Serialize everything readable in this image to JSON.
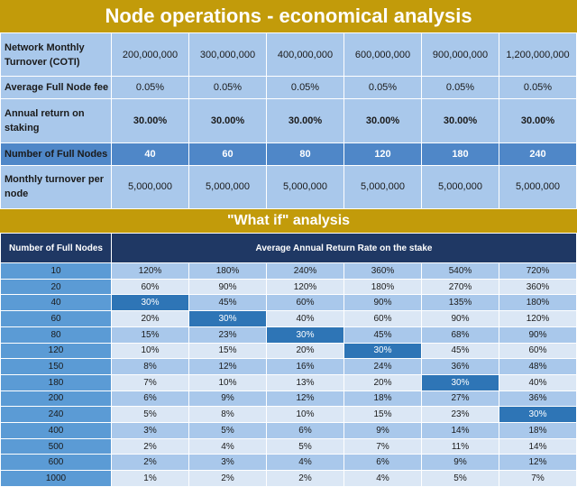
{
  "title": "Node operations - economical analysis",
  "top_table": {
    "rows": [
      {
        "label": "Network Monthly Turnover (COTI)",
        "values": [
          "200,000,000",
          "300,000,000",
          "400,000,000",
          "600,000,000",
          "900,000,000",
          "1,200,000,000"
        ]
      },
      {
        "label": "Average Full Node fee",
        "values": [
          "0.05%",
          "0.05%",
          "0.05%",
          "0.05%",
          "0.05%",
          "0.05%"
        ]
      },
      {
        "label": "Annual return on staking",
        "values": [
          "30.00%",
          "30.00%",
          "30.00%",
          "30.00%",
          "30.00%",
          "30.00%"
        ]
      },
      {
        "label": "Number of Full Nodes",
        "values": [
          "40",
          "60",
          "80",
          "120",
          "180",
          "240"
        ]
      },
      {
        "label": "Monthly turnover per node",
        "values": [
          "5,000,000",
          "5,000,000",
          "5,000,000",
          "5,000,000",
          "5,000,000",
          "5,000,000"
        ]
      }
    ]
  },
  "whatif": {
    "title": "\"What if\" analysis",
    "col1_header": "Number of Full Nodes",
    "col2_header": "Average Annual Return Rate on the stake",
    "rows": [
      {
        "nodes": "10",
        "values": [
          "120%",
          "180%",
          "240%",
          "360%",
          "540%",
          "720%"
        ]
      },
      {
        "nodes": "20",
        "values": [
          "60%",
          "90%",
          "120%",
          "180%",
          "270%",
          "360%"
        ]
      },
      {
        "nodes": "40",
        "values": [
          "30%",
          "45%",
          "60%",
          "90%",
          "135%",
          "180%"
        ]
      },
      {
        "nodes": "60",
        "values": [
          "20%",
          "30%",
          "40%",
          "60%",
          "90%",
          "120%"
        ]
      },
      {
        "nodes": "80",
        "values": [
          "15%",
          "23%",
          "30%",
          "45%",
          "68%",
          "90%"
        ]
      },
      {
        "nodes": "120",
        "values": [
          "10%",
          "15%",
          "20%",
          "30%",
          "45%",
          "60%"
        ]
      },
      {
        "nodes": "150",
        "values": [
          "8%",
          "12%",
          "16%",
          "24%",
          "36%",
          "48%"
        ]
      },
      {
        "nodes": "180",
        "values": [
          "7%",
          "10%",
          "13%",
          "20%",
          "30%",
          "40%"
        ]
      },
      {
        "nodes": "200",
        "values": [
          "6%",
          "9%",
          "12%",
          "18%",
          "27%",
          "36%"
        ]
      },
      {
        "nodes": "240",
        "values": [
          "5%",
          "8%",
          "10%",
          "15%",
          "23%",
          "30%"
        ]
      },
      {
        "nodes": "400",
        "values": [
          "3%",
          "5%",
          "6%",
          "9%",
          "14%",
          "18%"
        ]
      },
      {
        "nodes": "500",
        "values": [
          "2%",
          "4%",
          "5%",
          "7%",
          "11%",
          "14%"
        ]
      },
      {
        "nodes": "600",
        "values": [
          "2%",
          "3%",
          "4%",
          "6%",
          "9%",
          "12%"
        ]
      },
      {
        "nodes": "1000",
        "values": [
          "1%",
          "2%",
          "2%",
          "4%",
          "5%",
          "7%"
        ]
      }
    ]
  }
}
